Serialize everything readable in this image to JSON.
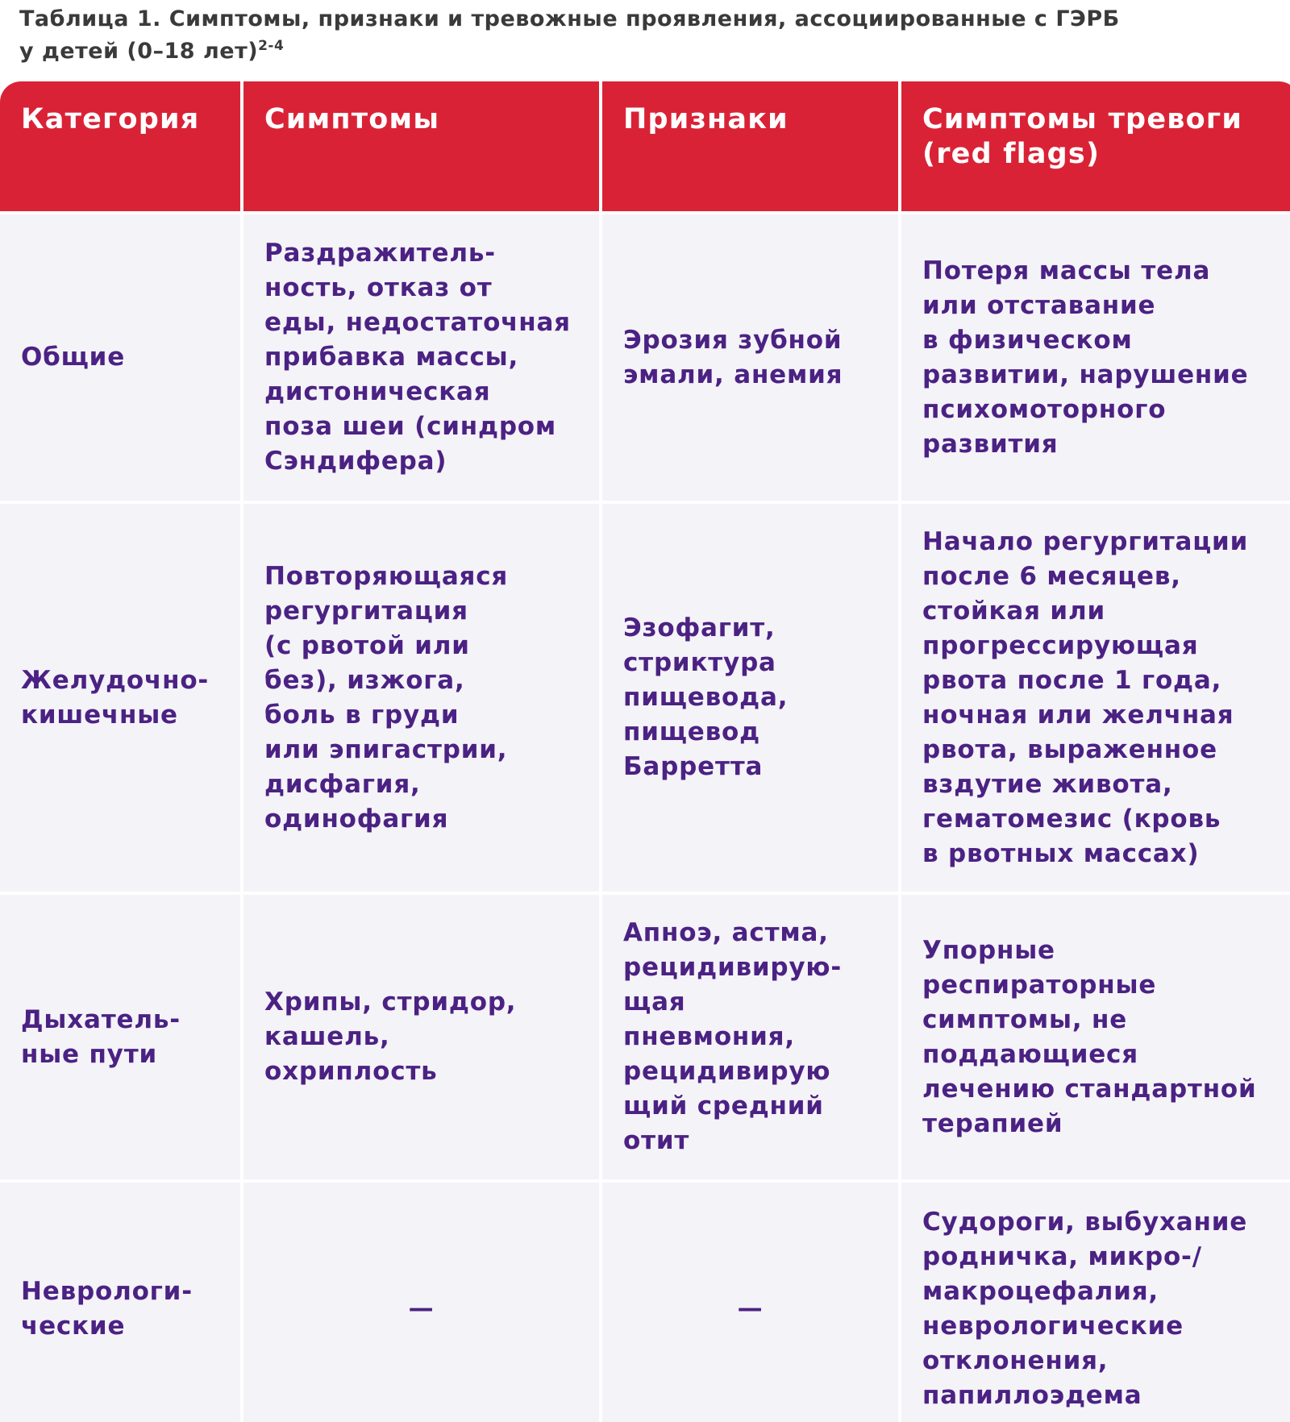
{
  "header": {
    "title": "Таблица 1. Симптомы, признаки и тревожные проявления, ассоциированные с ГЭРБ\nу детей (0–18 лет)",
    "title_sup": "2-4"
  },
  "table": {
    "columns": [
      "Категория",
      "Симптомы",
      "Признаки",
      "Симптомы тревоги\n(red flags)"
    ],
    "rows": [
      [
        "Общие",
        "Раздражитель-\nность, отказ от\nеды, недостаточная\nприбавка массы,\nдистоническая\nпоза шеи (синдром\nСэндифера)",
        "Эрозия зубной\nэмали, анемия",
        "Потеря массы тела\nили отставание\nв физическом\nразвитии, нарушение\nпсихомоторного\nразвития"
      ],
      [
        "Желудочно-\nкишечные",
        "Повторяющаяся\nрегургитация\n(с рвотой или\nбез), изжога,\nболь в груди\nили эпигастрии,\nдисфагия,\nодинофагия",
        "Эзофагит,\nстриктура\nпищевода,\nпищевод\nБарретта",
        "Начало регургитации\nпосле 6 месяцев,\nстойкая или\nпрогрессирующая\nрвота после 1 года,\nночная или желчная\nрвота, выраженное\nвздутие живота,\nгематомезис (кровь\nв рвотных массах)"
      ],
      [
        "Дыхатель-\nные пути",
        "Хрипы, стридор,\nкашель,\nохриплость",
        "Апноэ, астма,\nрецидивирую-\nщая\nпневмония,\nрецидивирую\nщий средний\nотит",
        "Упорные\nреспираторные\nсимптомы, не\nподдающиеся\nлечению стандартной\nтерапией"
      ],
      [
        "Неврологи-\nческие",
        "—",
        "—",
        "Судороги, выбухание\nродничка, микро-/\nмакроцефалия,\nневрологические\nотклонения,\nпапиллоэдема"
      ]
    ]
  }
}
